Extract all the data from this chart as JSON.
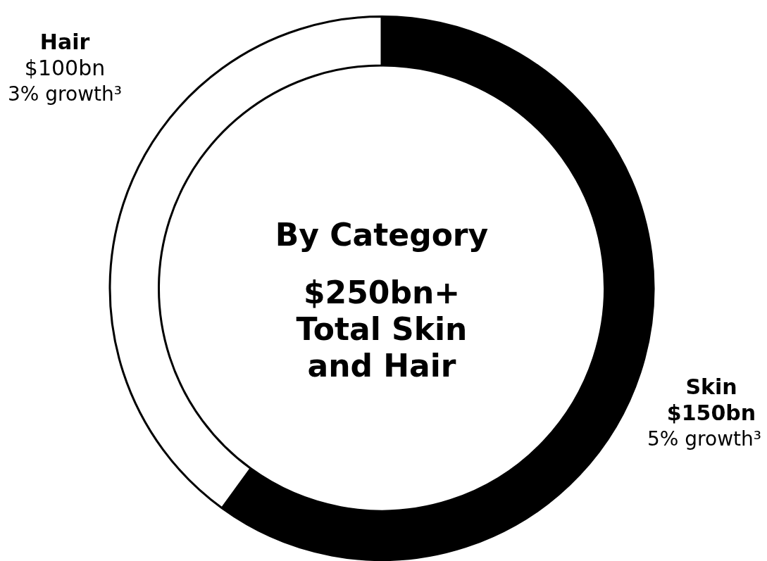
{
  "chart_data": {
    "type": "donut",
    "title": "By Category",
    "subtitle": "$250bn+ Total Skin and Hair",
    "categories": [
      "Skin",
      "Hair"
    ],
    "values": [
      150,
      100
    ],
    "colors": [
      "#000000",
      "#ffffff"
    ],
    "value_labels": [
      "$150bn",
      "$100bn"
    ],
    "annotations": [
      "5% growth³",
      "3% growth³"
    ],
    "legend": false
  }
}
